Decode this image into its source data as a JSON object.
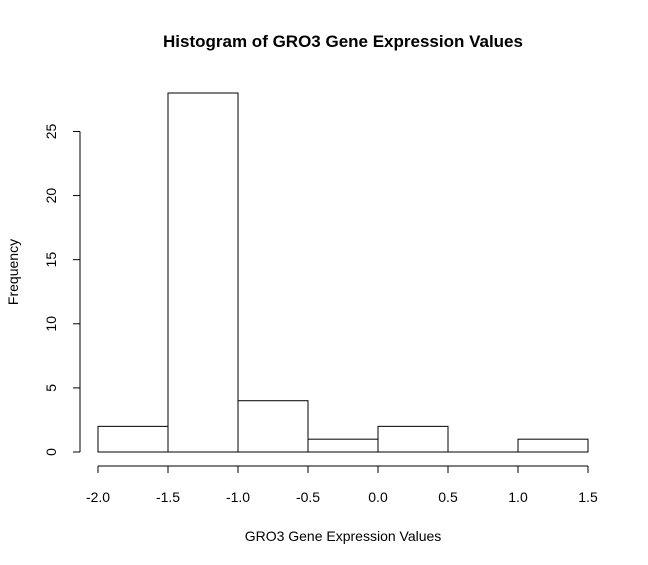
{
  "chart_data": {
    "type": "bar",
    "title": "Histogram of GRO3 Gene Expression Values",
    "xlabel": "GRO3 Gene Expression Values",
    "ylabel": "Frequency",
    "bins": [
      {
        "from": -2.0,
        "to": -1.5,
        "count": 2
      },
      {
        "from": -1.5,
        "to": -1.0,
        "count": 28
      },
      {
        "from": -1.0,
        "to": -0.5,
        "count": 4
      },
      {
        "from": -0.5,
        "to": 0.0,
        "count": 1
      },
      {
        "from": 0.0,
        "to": 0.5,
        "count": 2
      },
      {
        "from": 0.5,
        "to": 1.0,
        "count": 0
      },
      {
        "from": 1.0,
        "to": 1.5,
        "count": 1
      }
    ],
    "xlim": [
      -2.0,
      1.5
    ],
    "ylim": [
      0,
      28
    ],
    "x_ticks": [
      "-2.0",
      "-1.5",
      "-1.0",
      "-0.5",
      "0.0",
      "0.5",
      "1.0",
      "1.5"
    ],
    "y_ticks": [
      "0",
      "5",
      "10",
      "15",
      "20",
      "25"
    ],
    "grid": false,
    "legend": "none"
  }
}
